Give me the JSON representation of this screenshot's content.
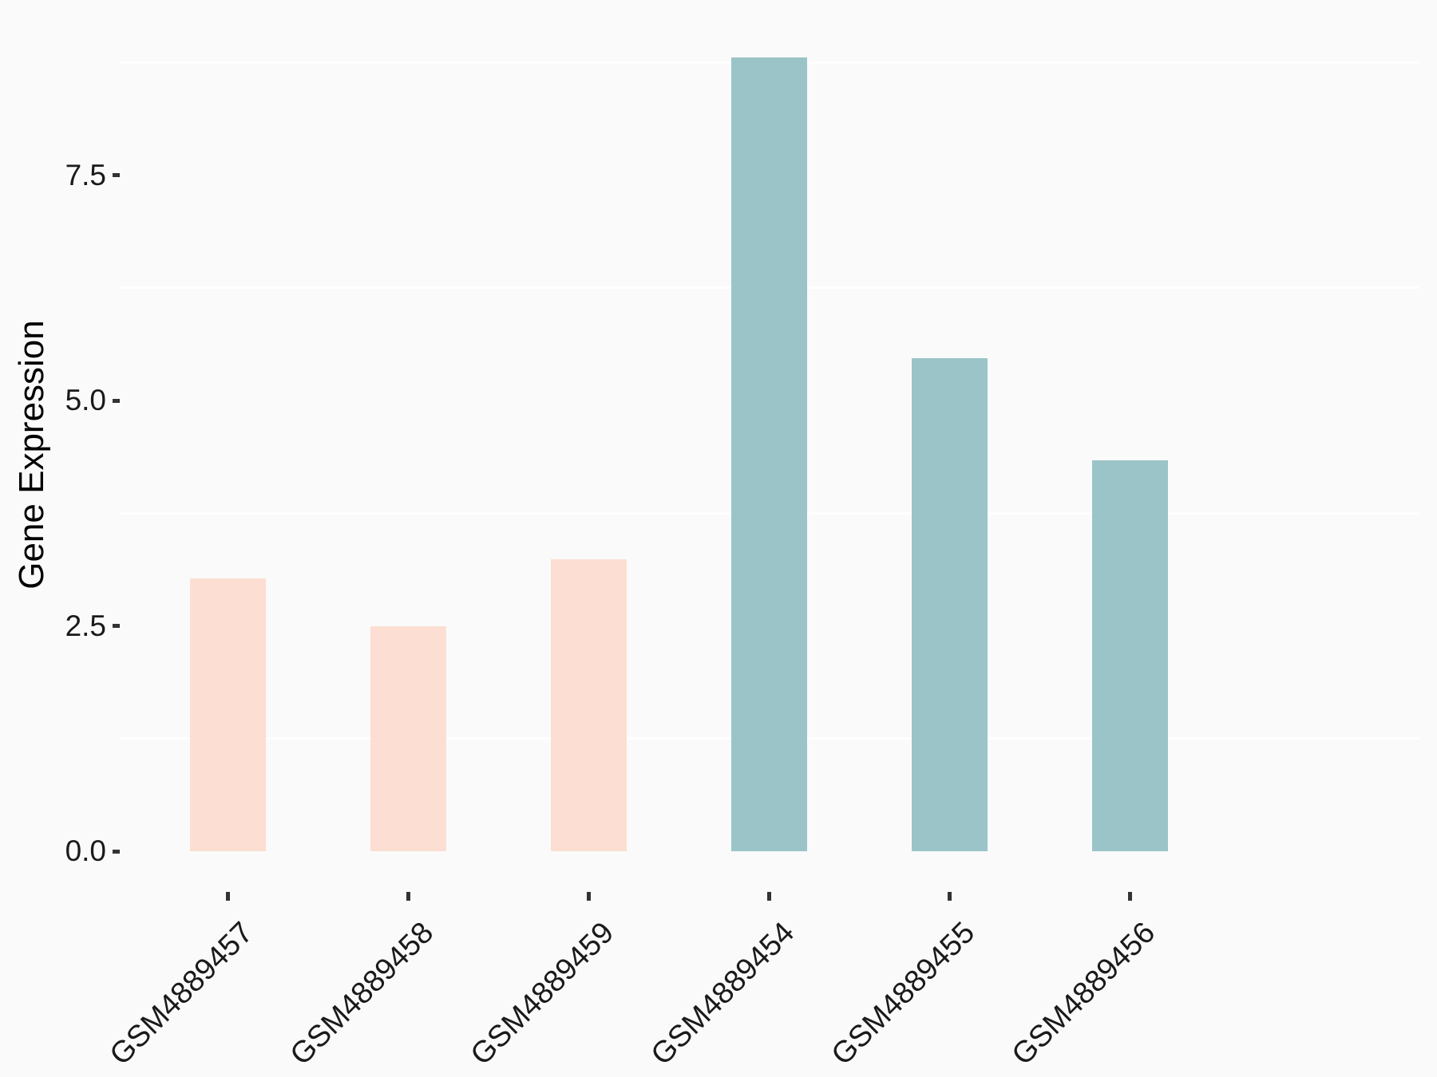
{
  "chart_data": {
    "type": "bar",
    "title": "",
    "xlabel": "",
    "ylabel": "Gene Expression",
    "categories": [
      "GSM4889457",
      "GSM4889458",
      "GSM4889459",
      "GSM4889454",
      "GSM4889455",
      "GSM4889456"
    ],
    "values": [
      3.03,
      2.5,
      3.24,
      8.81,
      5.47,
      4.34
    ],
    "bar_colors": [
      "#FCDFD2",
      "#FCDFD2",
      "#FCDFD2",
      "#9AC4C8",
      "#9AC4C8",
      "#9AC4C8"
    ],
    "y_ticks": [
      {
        "value": 0.0,
        "label": "0.0"
      },
      {
        "value": 2.5,
        "label": "2.5"
      },
      {
        "value": 5.0,
        "label": "5.0"
      },
      {
        "value": 7.5,
        "label": "7.5"
      }
    ],
    "y_minor_gridlines": [
      1.25,
      3.75,
      6.25,
      8.75
    ],
    "ylim": [
      -0.45,
      9.25
    ],
    "legend": "none",
    "grid": "minor_only_white_on_light_gray",
    "colors": {
      "salmon_group": "#FCDFD2",
      "teal_group": "#9AC4C8",
      "background": "#FAFAFA",
      "gridline": "#FFFFFF",
      "tick_mark": "#333333",
      "axis_text": "#1A1A1A",
      "axis_title": "#000000"
    }
  }
}
